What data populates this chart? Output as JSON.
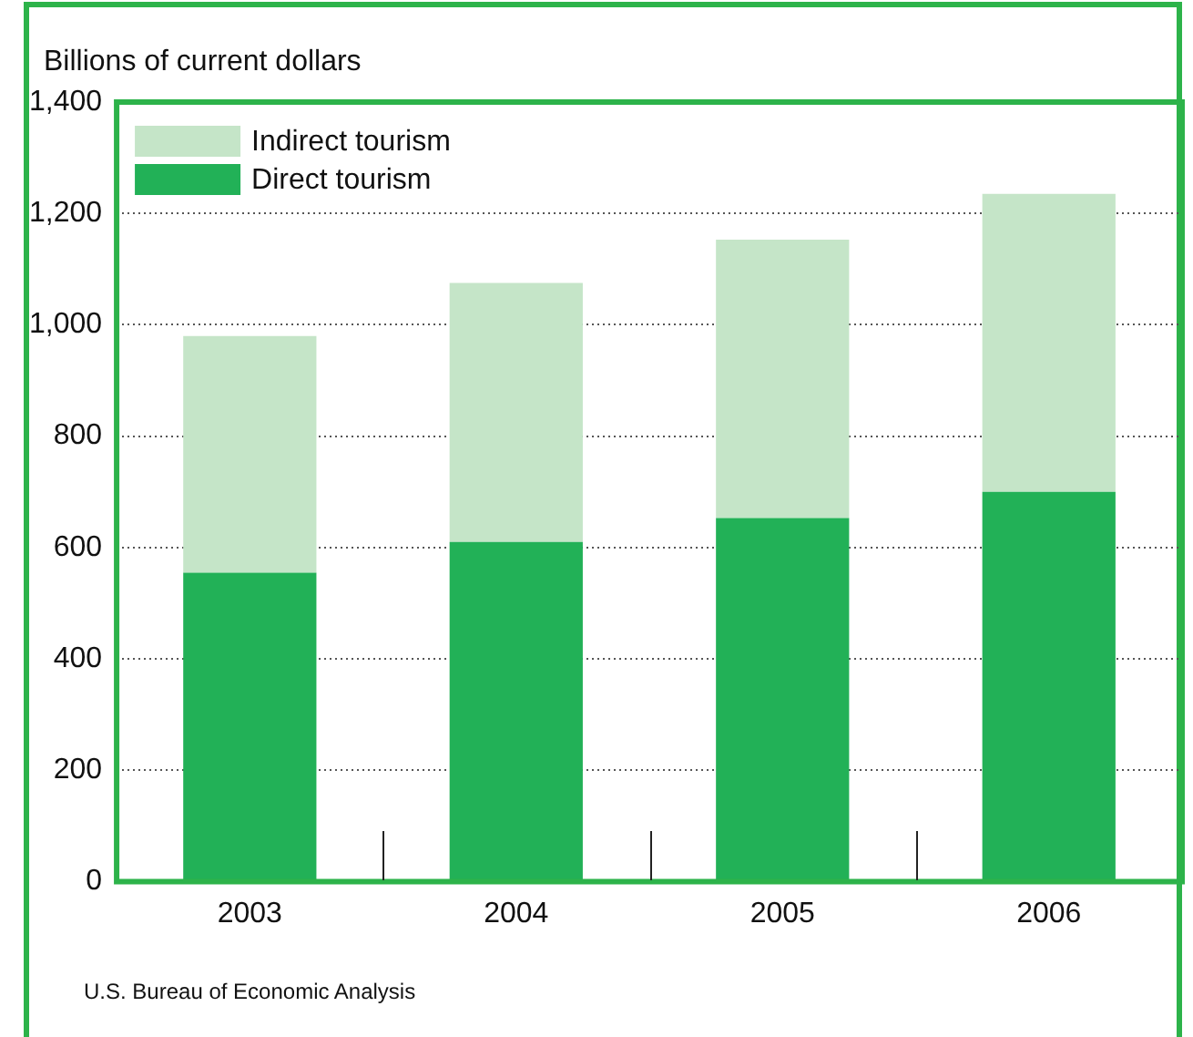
{
  "chart_data": {
    "type": "bar",
    "ylabel": "Billions of current dollars",
    "categories": [
      "2003",
      "2004",
      "2005",
      "2006"
    ],
    "series": [
      {
        "name": "Direct tourism",
        "color": "#22b157",
        "values": [
          555,
          610,
          653,
          700
        ]
      },
      {
        "name": "Indirect tourism",
        "color": "#c5e5c8",
        "values": [
          425,
          465,
          500,
          535
        ]
      }
    ],
    "stacked": true,
    "ylim": [
      0,
      1400
    ],
    "yticks": [
      0,
      200,
      400,
      600,
      800,
      {
        "value": 1000,
        "label": "1,000"
      },
      {
        "value": 1200,
        "label": "1,200"
      },
      {
        "value": 1400,
        "label": "1,400"
      }
    ],
    "grid": "y",
    "legend": "top left",
    "annotations": [
      "U.S. Bureau of Economic Analysis"
    ]
  }
}
